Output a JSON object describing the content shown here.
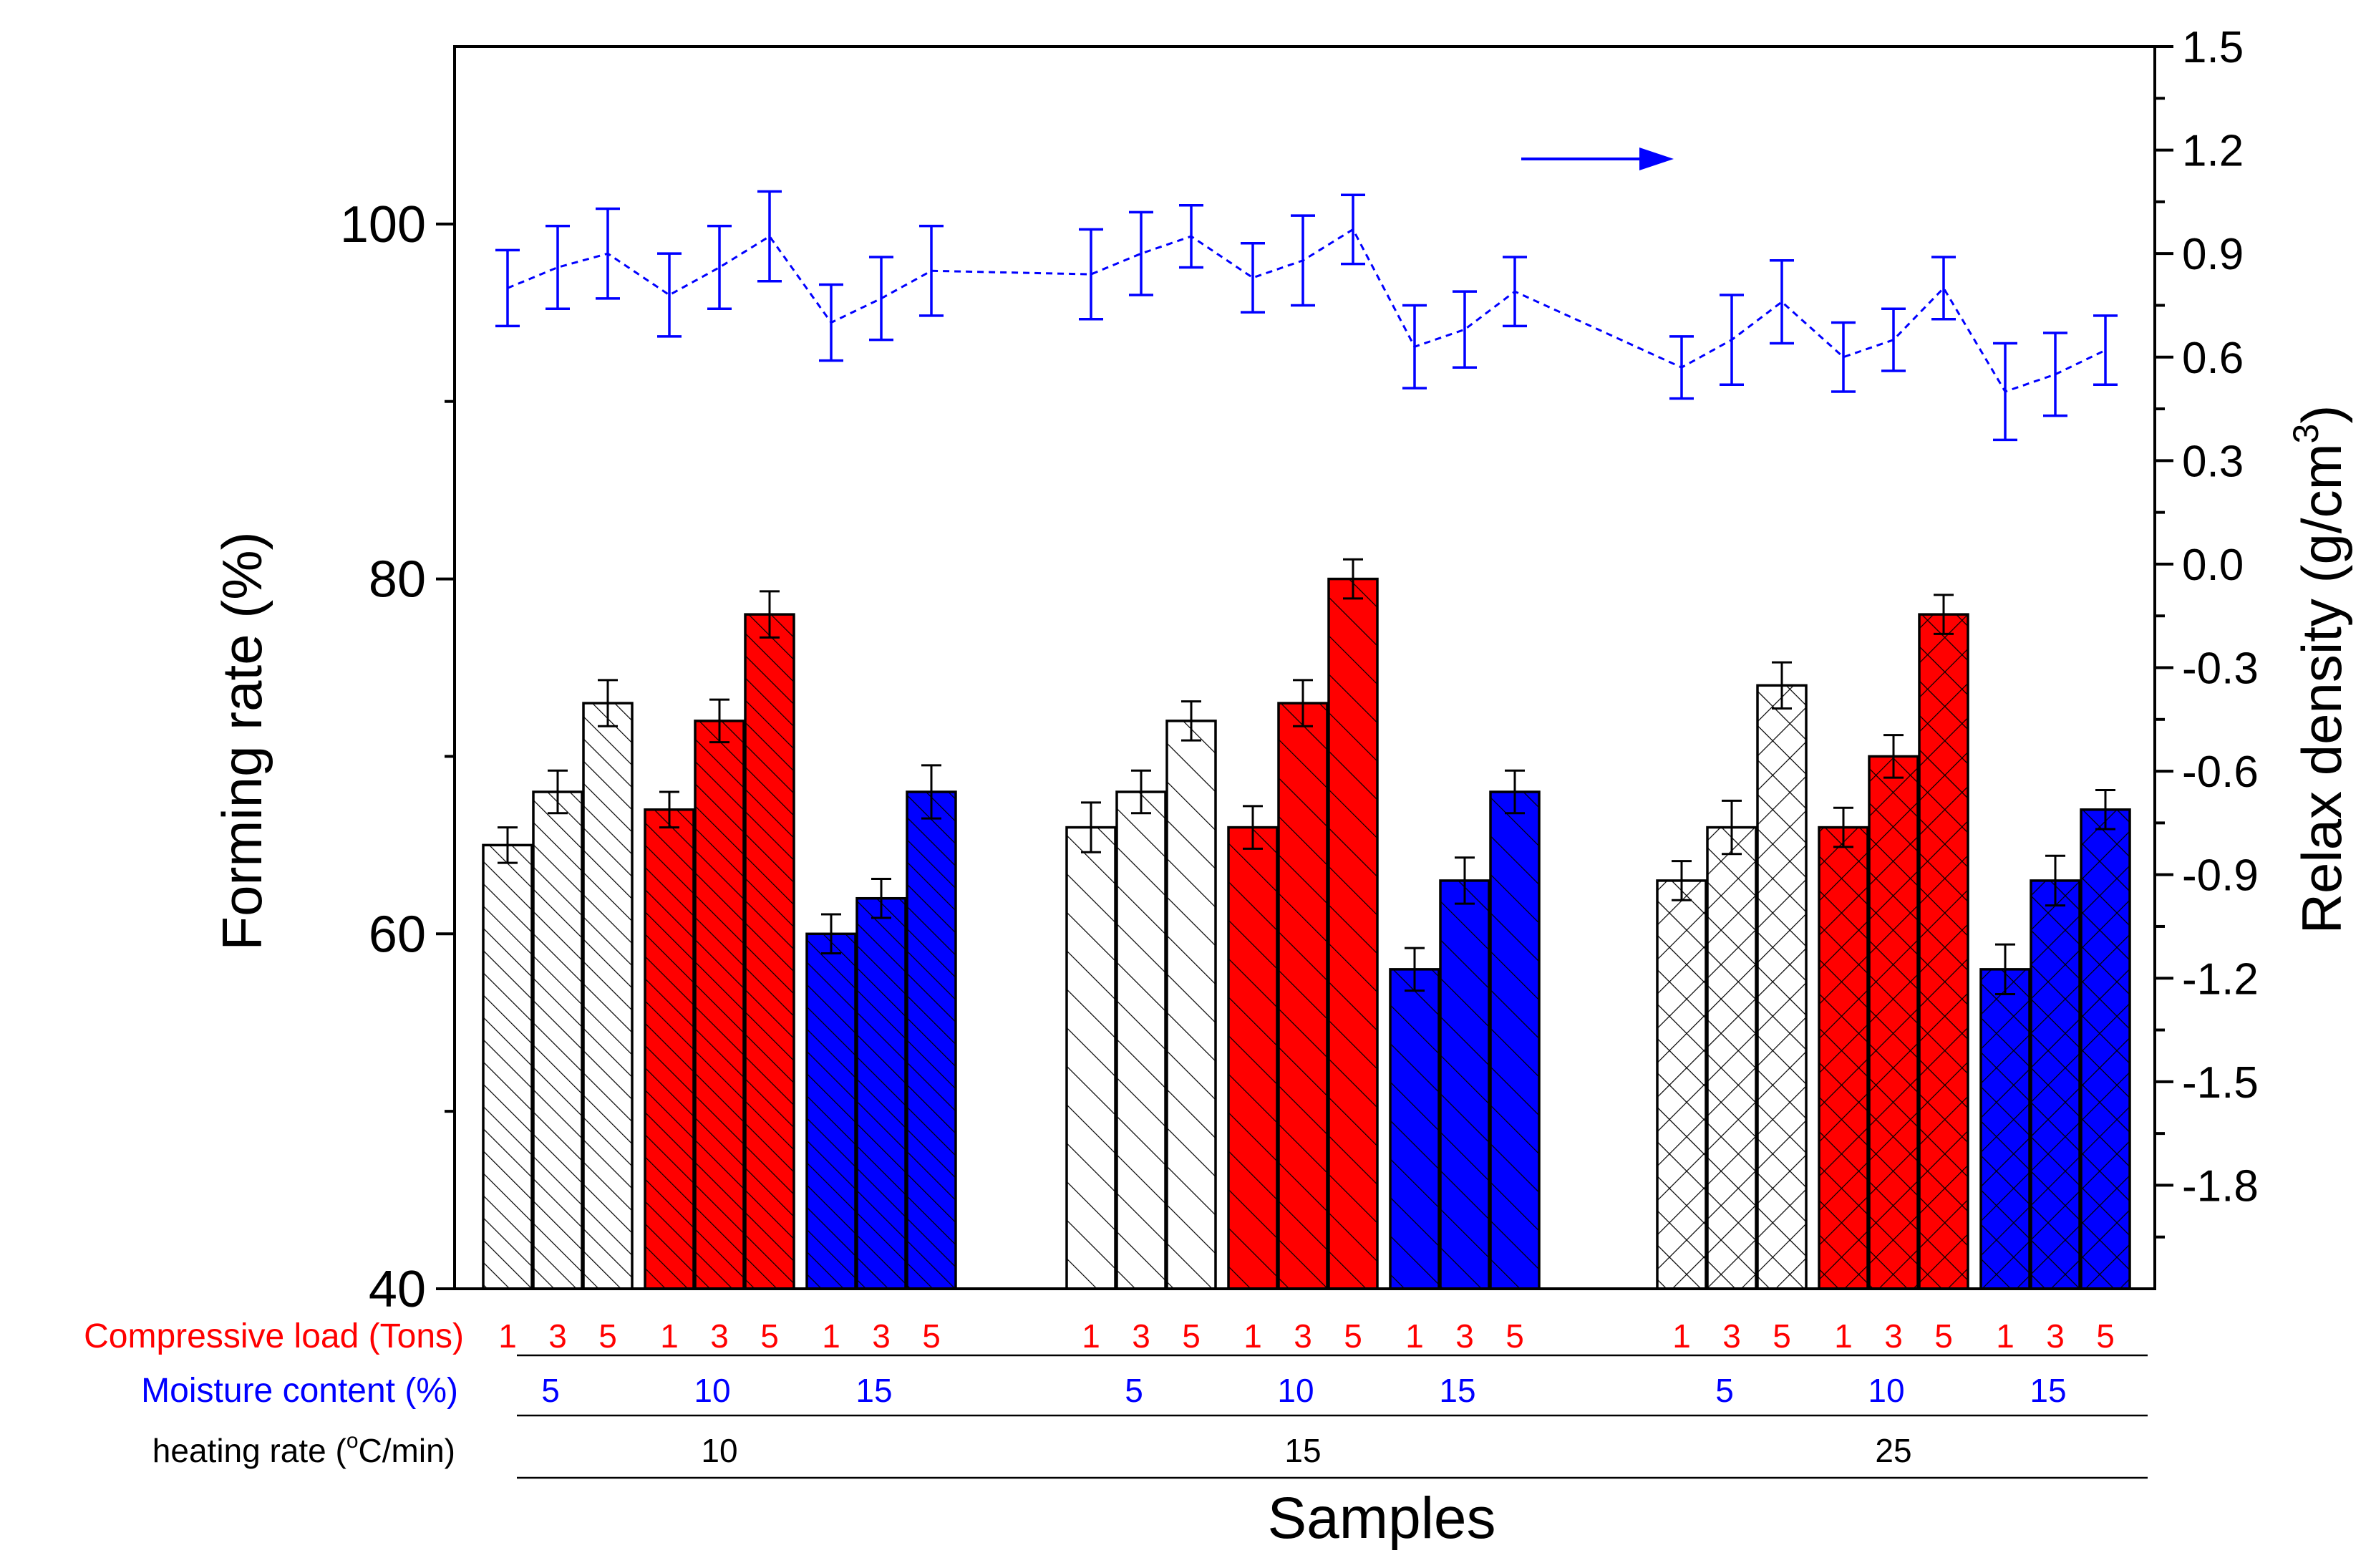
{
  "chart_data": {
    "type": "bar",
    "xlabel": "Samples",
    "ylabel": "Forming rate (%)",
    "ylim": [
      40,
      110
    ],
    "yticks": [
      "40",
      "60",
      "80",
      "100"
    ],
    "y2label_main": "Relax density (g/cm",
    "y2label_sup": "3",
    "y2label_end": ")",
    "y2lim": [
      -2.1,
      1.5
    ],
    "y2ticks": [
      "1.5",
      "1.2",
      "0.9",
      "0.6",
      "0.3",
      "0.0",
      "-0.3",
      "-0.6",
      "-0.9",
      "-1.2",
      "-1.5",
      "-1.8"
    ],
    "y2tick_values": [
      1.5,
      1.2,
      0.9,
      0.6,
      0.3,
      0.0,
      -0.3,
      -0.6,
      -0.9,
      -1.2,
      -1.5,
      -1.8
    ],
    "colors": {
      "white": "#ffffff",
      "red": "#ff0000",
      "blue": "#0000ff",
      "line": "#0000ff",
      "label_red": "#ff0000",
      "label_blue": "#0000ff"
    },
    "rows": {
      "load_label": "Compressive load (Tons)",
      "moisture_label": "Moisture content (%)",
      "heating_label_pre": "heating rate (",
      "heating_label_sup": "o",
      "heating_label_post": "C/min)"
    },
    "groups": [
      {
        "heating_rate": "10",
        "pattern": "dense",
        "subgroups": [
          {
            "moisture": "5",
            "color": "white",
            "loads": [
              "1",
              "3",
              "5"
            ],
            "values": [
              65,
              68,
              73
            ],
            "errors": [
              1.0,
              1.2,
              1.3
            ]
          },
          {
            "moisture": "10",
            "color": "red",
            "loads": [
              "1",
              "3",
              "5"
            ],
            "values": [
              67,
              72,
              78
            ],
            "errors": [
              1.0,
              1.2,
              1.3
            ]
          },
          {
            "moisture": "15",
            "color": "blue",
            "loads": [
              "1",
              "3",
              "5"
            ],
            "values": [
              60,
              62,
              68
            ],
            "errors": [
              1.1,
              1.1,
              1.5
            ]
          }
        ]
      },
      {
        "heating_rate": "15",
        "pattern": "sparse",
        "subgroups": [
          {
            "moisture": "5",
            "color": "white",
            "loads": [
              "1",
              "3",
              "5"
            ],
            "values": [
              66,
              68,
              72
            ],
            "errors": [
              1.4,
              1.2,
              1.1
            ]
          },
          {
            "moisture": "10",
            "color": "red",
            "loads": [
              "1",
              "3",
              "5"
            ],
            "values": [
              66,
              73,
              80
            ],
            "errors": [
              1.2,
              1.3,
              1.1
            ]
          },
          {
            "moisture": "15",
            "color": "blue",
            "loads": [
              "1",
              "3",
              "5"
            ],
            "values": [
              58,
              63,
              68
            ],
            "errors": [
              1.2,
              1.3,
              1.2
            ]
          }
        ]
      },
      {
        "heating_rate": "25",
        "pattern": "cross",
        "subgroups": [
          {
            "moisture": "5",
            "color": "white",
            "loads": [
              "1",
              "3",
              "5"
            ],
            "values": [
              63,
              66,
              74
            ],
            "errors": [
              1.1,
              1.5,
              1.3
            ]
          },
          {
            "moisture": "10",
            "color": "red",
            "loads": [
              "1",
              "3",
              "5"
            ],
            "values": [
              66,
              70,
              78
            ],
            "errors": [
              1.1,
              1.2,
              1.1
            ]
          },
          {
            "moisture": "15",
            "color": "blue",
            "loads": [
              "1",
              "3",
              "5"
            ],
            "values": [
              58,
              63,
              67
            ],
            "errors": [
              1.4,
              1.4,
              1.1
            ]
          }
        ]
      }
    ],
    "relax_density": {
      "series_name": "Relax density",
      "style": "dashed line with error bars",
      "segments": [
        {
          "values": [
            0.8,
            0.86,
            0.9,
            0.78,
            0.86,
            0.95,
            0.7,
            0.77,
            0.85
          ],
          "errors": [
            0.11,
            0.12,
            0.13,
            0.12,
            0.12,
            0.13,
            0.11,
            0.12,
            0.13
          ]
        },
        {
          "values": [
            0.84,
            0.9,
            0.95,
            0.83,
            0.88,
            0.97,
            0.63,
            0.68,
            0.79
          ],
          "errors": [
            0.13,
            0.12,
            0.09,
            0.1,
            0.13,
            0.1,
            0.12,
            0.11,
            0.1
          ]
        },
        {
          "values": [
            0.57,
            0.65,
            0.76,
            0.6,
            0.65,
            0.8,
            0.5,
            0.55,
            0.62
          ],
          "errors": [
            0.09,
            0.13,
            0.12,
            0.1,
            0.09,
            0.09,
            0.14,
            0.12,
            0.1
          ]
        }
      ]
    },
    "annotation": "arrow pointing right (line series refers to right axis)"
  }
}
